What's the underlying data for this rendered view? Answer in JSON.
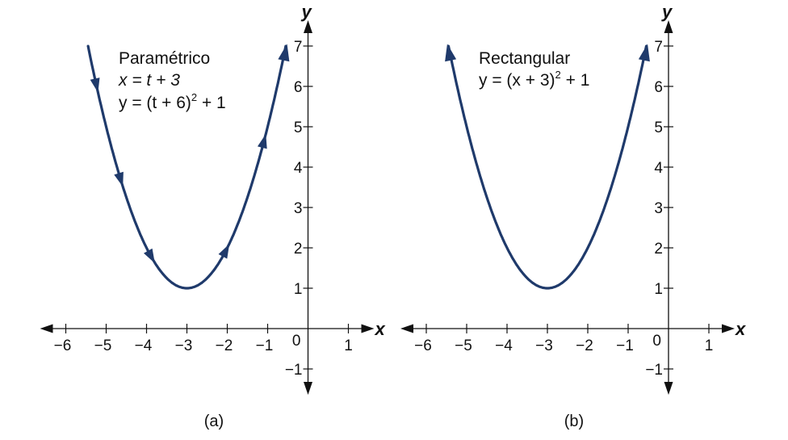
{
  "chart_data": [
    {
      "type": "line",
      "caption": "(a)",
      "xlabel": "x",
      "ylabel": "y",
      "xlim": [
        -6.5,
        1.6
      ],
      "ylim": [
        -1.5,
        7.5
      ],
      "x_ticks": [
        "−6",
        "−5",
        "−4",
        "−3",
        "−2",
        "−1",
        "1"
      ],
      "y_ticks": [
        "−1",
        "1",
        "2",
        "3",
        "4",
        "5",
        "6",
        "7"
      ],
      "origin_label": "0",
      "annotation": [
        "Paramétrico",
        "x = t + 3",
        "y = (t + 6)",
        "2",
        " + 1"
      ],
      "curve": {
        "equation": "y = (x + 3)^2 + 1",
        "x_range": [
          -5.449,
          -0.551
        ],
        "vertex": [
          -3,
          1
        ]
      },
      "direction_arrows_at_x": [
        -5.25,
        -4.65,
        -3.9,
        -2.05,
        -1.1
      ],
      "end_arrows": [
        "end"
      ],
      "color": "#1f3a6b"
    },
    {
      "type": "line",
      "caption": "(b)",
      "xlabel": "x",
      "ylabel": "y",
      "xlim": [
        -6.5,
        1.6
      ],
      "ylim": [
        -1.5,
        7.5
      ],
      "x_ticks": [
        "−6",
        "−5",
        "−4",
        "−3",
        "−2",
        "−1",
        "1"
      ],
      "y_ticks": [
        "−1",
        "1",
        "2",
        "3",
        "4",
        "5",
        "6",
        "7"
      ],
      "origin_label": "0",
      "annotation": [
        "Rectangular",
        "y = (x + 3)",
        "2",
        " + 1"
      ],
      "curve": {
        "equation": "y = (x + 3)^2 + 1",
        "x_range": [
          -5.449,
          -0.551
        ],
        "vertex": [
          -3,
          1
        ]
      },
      "direction_arrows_at_x": [],
      "end_arrows": [
        "start",
        "end"
      ],
      "color": "#1f3a6b"
    }
  ]
}
